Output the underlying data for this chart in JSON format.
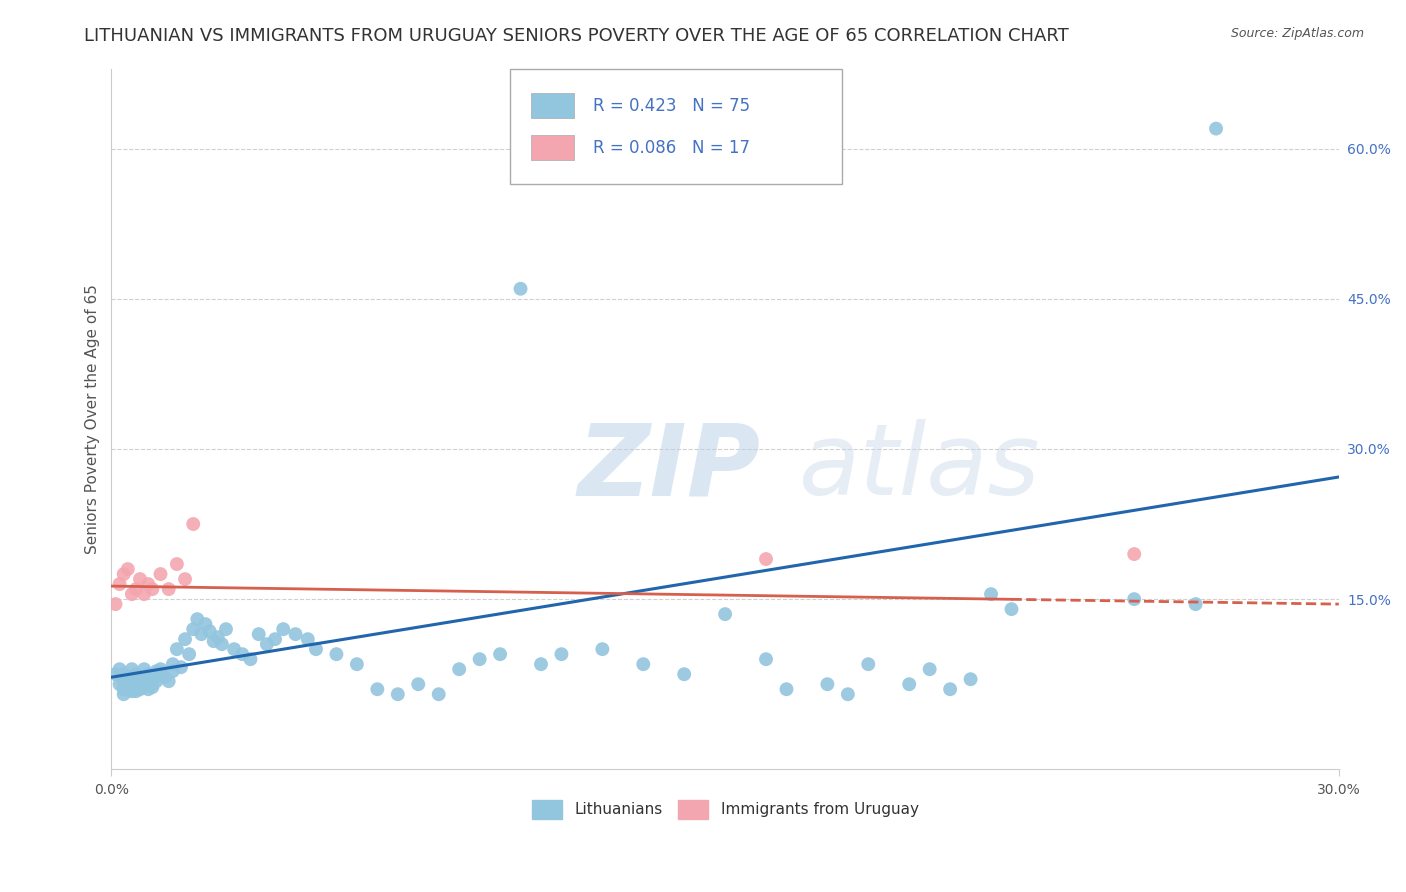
{
  "title": "LITHUANIAN VS IMMIGRANTS FROM URUGUAY SENIORS POVERTY OVER THE AGE OF 65 CORRELATION CHART",
  "source": "Source: ZipAtlas.com",
  "ylabel": "Seniors Poverty Over the Age of 65",
  "xlabel": "",
  "xlim": [
    0.0,
    0.3
  ],
  "ylim": [
    -0.02,
    0.68
  ],
  "xticks": [
    0.0,
    0.3
  ],
  "xtick_labels": [
    "0.0%",
    "30.0%"
  ],
  "ytick_right": [
    0.15,
    0.3,
    0.45,
    0.6
  ],
  "ytick_right_labels": [
    "15.0%",
    "30.0%",
    "45.0%",
    "60.0%"
  ],
  "series1_color": "#92C5DE",
  "series2_color": "#F4A6B0",
  "line1_color": "#2166AC",
  "line2_color": "#D6604D",
  "R1": 0.423,
  "N1": 75,
  "R2": 0.086,
  "N2": 17,
  "legend1": "Lithuanians",
  "legend2": "Immigrants from Uruguay",
  "watermark_zip": "ZIP",
  "watermark_atlas": "atlas",
  "background_color": "#ffffff",
  "grid_color": "#d0d0d0",
  "title_fontsize": 13,
  "label_fontsize": 11,
  "tick_fontsize": 10,
  "line1_x0": 0.0,
  "line1_y0": 0.072,
  "line1_x1": 0.3,
  "line1_y1": 0.272,
  "line2_x0": 0.0,
  "line2_y0": 0.163,
  "line2_x1": 0.3,
  "line2_y1": 0.145,
  "series1_x": [
    0.001,
    0.002,
    0.002,
    0.003,
    0.003,
    0.003,
    0.003,
    0.004,
    0.004,
    0.004,
    0.005,
    0.005,
    0.005,
    0.006,
    0.006,
    0.006,
    0.006,
    0.007,
    0.007,
    0.007,
    0.008,
    0.008,
    0.008,
    0.009,
    0.009,
    0.009,
    0.01,
    0.01,
    0.01,
    0.011,
    0.011,
    0.012,
    0.012,
    0.013,
    0.014,
    0.015,
    0.015,
    0.016,
    0.017,
    0.018,
    0.019,
    0.02,
    0.021,
    0.022,
    0.023,
    0.024,
    0.025,
    0.026,
    0.027,
    0.028,
    0.03,
    0.032,
    0.034,
    0.036,
    0.038,
    0.04,
    0.042,
    0.045,
    0.048,
    0.05,
    0.055,
    0.06,
    0.065,
    0.07,
    0.075,
    0.08,
    0.085,
    0.09,
    0.095,
    0.1,
    0.105,
    0.11,
    0.12,
    0.13,
    0.14
  ],
  "series1_y": [
    0.075,
    0.065,
    0.08,
    0.06,
    0.075,
    0.068,
    0.055,
    0.07,
    0.06,
    0.072,
    0.065,
    0.058,
    0.08,
    0.062,
    0.07,
    0.058,
    0.075,
    0.065,
    0.072,
    0.06,
    0.08,
    0.065,
    0.07,
    0.068,
    0.06,
    0.075,
    0.062,
    0.07,
    0.065,
    0.078,
    0.068,
    0.075,
    0.08,
    0.072,
    0.068,
    0.085,
    0.078,
    0.1,
    0.082,
    0.11,
    0.095,
    0.12,
    0.13,
    0.115,
    0.125,
    0.118,
    0.108,
    0.112,
    0.105,
    0.12,
    0.1,
    0.095,
    0.09,
    0.115,
    0.105,
    0.11,
    0.12,
    0.115,
    0.11,
    0.1,
    0.095,
    0.085,
    0.06,
    0.055,
    0.065,
    0.055,
    0.08,
    0.09,
    0.095,
    0.46,
    0.085,
    0.095,
    0.1,
    0.085,
    0.075
  ],
  "series1_x2": [
    0.15,
    0.16,
    0.165,
    0.175,
    0.18,
    0.185,
    0.195,
    0.2,
    0.205,
    0.21,
    0.215,
    0.22,
    0.25,
    0.265,
    0.27
  ],
  "series1_y2": [
    0.135,
    0.09,
    0.06,
    0.065,
    0.055,
    0.085,
    0.065,
    0.08,
    0.06,
    0.07,
    0.155,
    0.14,
    0.15,
    0.145,
    0.62
  ],
  "series2_x": [
    0.001,
    0.002,
    0.003,
    0.004,
    0.005,
    0.006,
    0.007,
    0.008,
    0.009,
    0.01,
    0.012,
    0.014,
    0.016,
    0.018,
    0.02,
    0.16,
    0.25
  ],
  "series2_y": [
    0.145,
    0.165,
    0.175,
    0.18,
    0.155,
    0.16,
    0.17,
    0.155,
    0.165,
    0.16,
    0.175,
    0.16,
    0.185,
    0.17,
    0.225,
    0.19,
    0.195
  ]
}
